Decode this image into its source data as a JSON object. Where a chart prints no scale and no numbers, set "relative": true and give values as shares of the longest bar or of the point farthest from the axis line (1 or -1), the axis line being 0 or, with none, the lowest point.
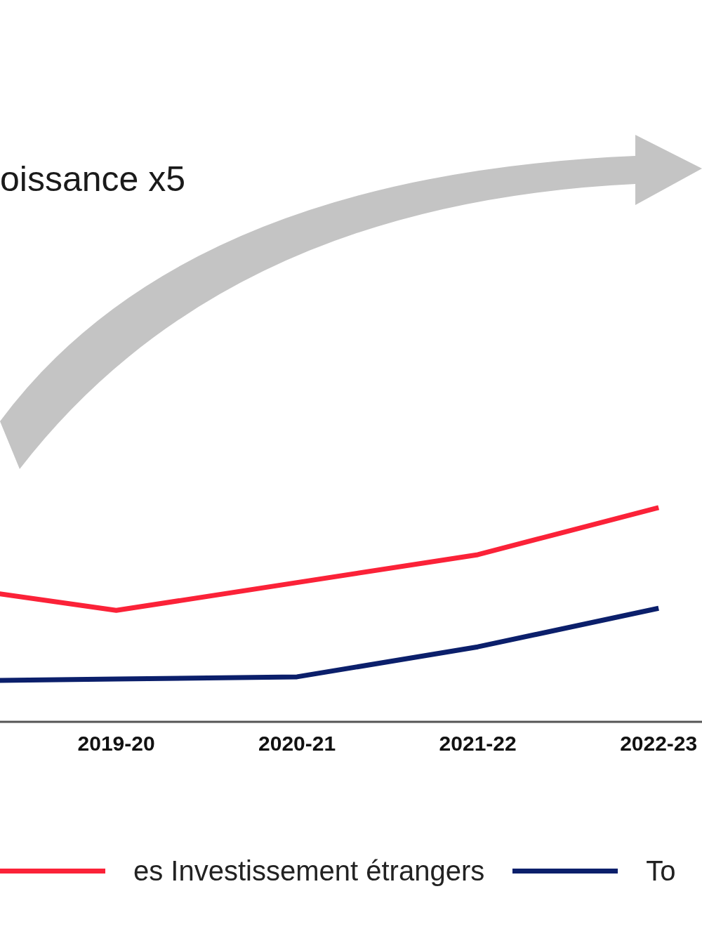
{
  "chart_data": {
    "type": "line",
    "relative": true,
    "legend": "bottom",
    "categories": [
      null,
      "2019-20",
      "2020-21",
      "2021-22",
      "2022-23",
      null
    ],
    "annotations": [
      "oissance x5"
    ],
    "series": [
      {
        "name": "es Investissement étrangers",
        "color": "#fb2238",
        "values": [
          0.64,
          0.52,
          0.65,
          0.78,
          1.0,
          null
        ]
      },
      {
        "name": "To",
        "color": "#0b1f6b",
        "values": [
          0.19,
          0.2,
          0.21,
          0.35,
          0.53,
          null
        ]
      }
    ]
  }
}
